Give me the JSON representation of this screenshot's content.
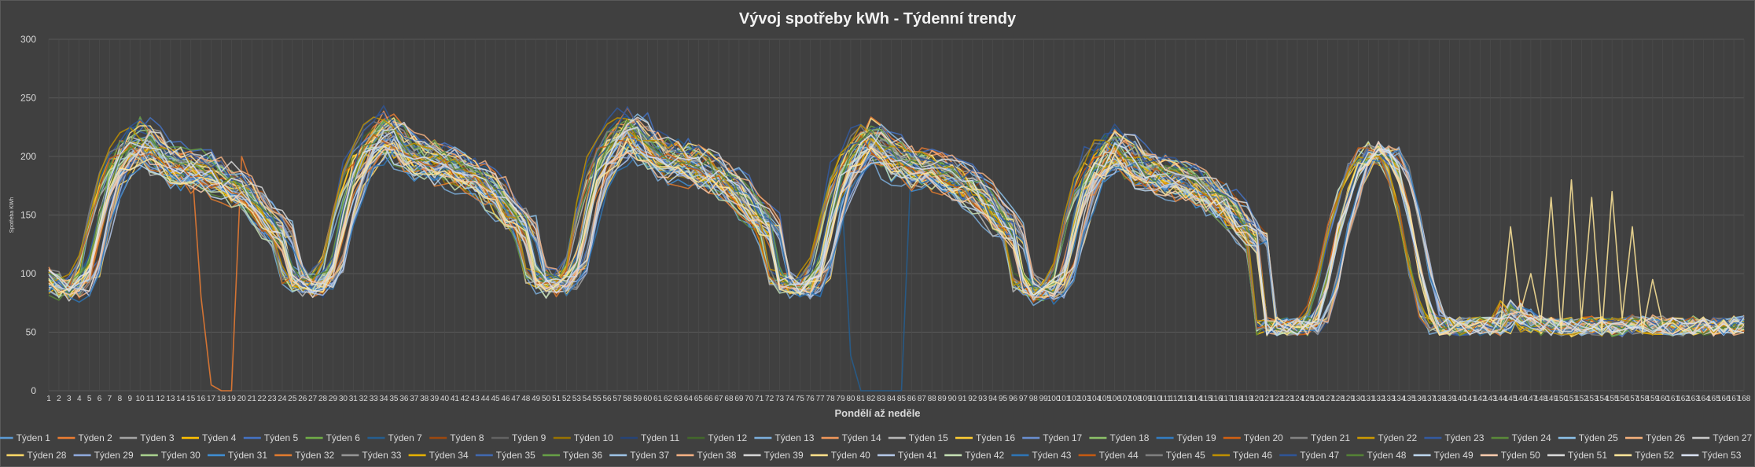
{
  "chart_data": {
    "type": "line",
    "title": "Vývoj spotřeby kWh - Týdenní trendy",
    "xlabel": "Pondělí až neděle",
    "ylabel": "Spotřeba KWh",
    "ylim": [
      0,
      300
    ],
    "yticks": [
      0,
      50,
      100,
      150,
      200,
      250,
      300
    ],
    "x_start": 1,
    "x_end": 168,
    "grid": true,
    "legend_position": "bottom",
    "series_names": [
      "Týden 1",
      "Týden 2",
      "Týden 3",
      "Týden 4",
      "Týden 5",
      "Týden 6",
      "Týden 7",
      "Týden 8",
      "Týden 9",
      "Týden 10",
      "Týden 11",
      "Týden 12",
      "Týden 13",
      "Týden 14",
      "Týden 15",
      "Týden 16",
      "Týden 17",
      "Týden 18",
      "Týden 19",
      "Týden 20",
      "Týden 21",
      "Týden 22",
      "Týden 23",
      "Týden 24",
      "Týden 25",
      "Týden 26",
      "Týden 27",
      "Týden 28",
      "Týden 29",
      "Týden 30",
      "Týden 31",
      "Týden 32",
      "Týden 33",
      "Týden 34",
      "Týden 35",
      "Týden 36",
      "Týden 37",
      "Týden 38",
      "Týden 39",
      "Týden 40",
      "Týden 41",
      "Týden 42",
      "Týden 43",
      "Týden 44",
      "Týden 45",
      "Týden 46",
      "Týden 47",
      "Týden 48",
      "Týden 49",
      "Týden 50",
      "Týden 51",
      "Týden 52",
      "Týden 53"
    ],
    "series_colors": [
      "#5b9bd5",
      "#ed7d31",
      "#a5a5a5",
      "#ffc000",
      "#4472c4",
      "#70ad47",
      "#255e91",
      "#9e480e",
      "#636363",
      "#997300",
      "#264478",
      "#43682b",
      "#7cafdd",
      "#f1975a",
      "#b7b7b7",
      "#ffcd33",
      "#698ed0",
      "#8cc168",
      "#327dc2",
      "#d26012",
      "#848484",
      "#cc9a00",
      "#335aa1",
      "#5a8a39",
      "#8cc1e9",
      "#f5b17c",
      "#c9c9c9",
      "#ffd966",
      "#8faadc",
      "#a9d18e",
      "#3f8ed3",
      "#e27b2e",
      "#969696",
      "#e6b100",
      "#4169b0",
      "#66a046",
      "#9dc3e6",
      "#f4b183",
      "#d6d6d6",
      "#ffe08a",
      "#b4c7e7",
      "#c5e0b4",
      "#2e75b6",
      "#c55a11",
      "#7f7f7f",
      "#bf9000",
      "#2f5597",
      "#548235",
      "#bdd7ee",
      "#f8cbad",
      "#dbdbdb",
      "#ffe699",
      "#d9e1f2"
    ],
    "profile_weekday": [
      100,
      95,
      90,
      95,
      110,
      150,
      185,
      205,
      215,
      225,
      220,
      210,
      205,
      200,
      200,
      198,
      195,
      190,
      185,
      180,
      172,
      160,
      150,
      140,
      125
    ],
    "profile_weekend": [
      70,
      62,
      58,
      56,
      55,
      54,
      54,
      55,
      56,
      55,
      54,
      55,
      56,
      57,
      56,
      55,
      54,
      55,
      56,
      55,
      54,
      55,
      56,
      57,
      58
    ],
    "saturday_peak": [
      0,
      0,
      0,
      0,
      0,
      10,
      40,
      80,
      110,
      135,
      145,
      150,
      145,
      130,
      95,
      50,
      15,
      0,
      0,
      0,
      0,
      0,
      0,
      0,
      0
    ],
    "anomalies": [
      {
        "series": "Týden 2",
        "x": [
          16,
          17,
          18,
          19,
          20
        ],
        "y": [
          80,
          5,
          0,
          0,
          200
        ]
      },
      {
        "series": "Týden 7",
        "x": [
          80,
          81,
          82,
          83,
          84,
          85
        ],
        "y": [
          30,
          0,
          0,
          0,
          0,
          0
        ]
      },
      {
        "series": "Týden 52",
        "x": [
          145,
          147,
          149,
          151,
          153,
          155,
          157,
          159
        ],
        "y": [
          140,
          100,
          165,
          180,
          165,
          170,
          140,
          95
        ]
      }
    ]
  }
}
